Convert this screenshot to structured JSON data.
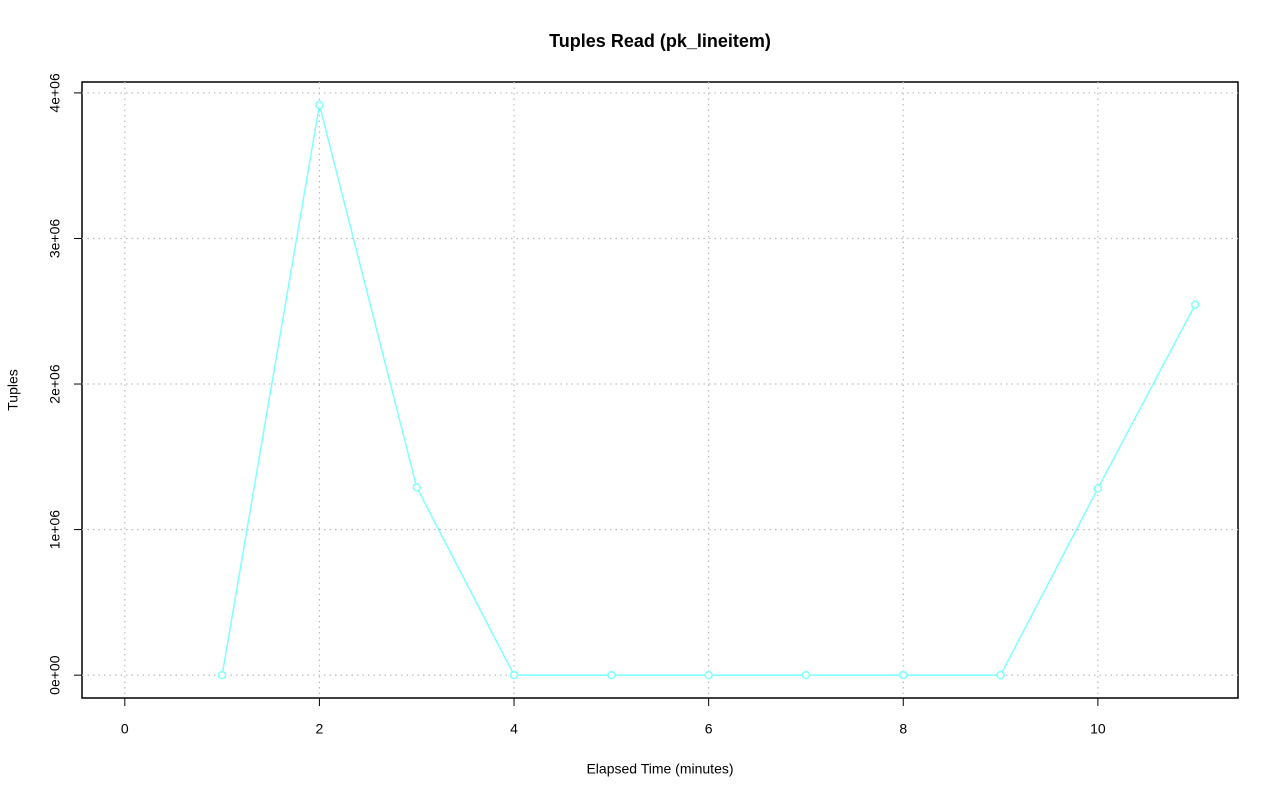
{
  "chart_data": {
    "type": "line",
    "title": "Tuples Read (pk_lineitem)",
    "x_label": "Elapsed Time (minutes)",
    "y_label": "Tuples",
    "x": [
      1,
      2,
      3,
      4,
      5,
      6,
      7,
      8,
      9,
      10,
      11
    ],
    "series": [
      {
        "name": "pk_lineitem",
        "color": "#80ffff",
        "values": [
          0,
          3918000,
          1290000,
          0,
          0,
          0,
          0,
          0,
          0,
          1283000,
          2545000
        ]
      }
    ],
    "xlim": [
      -0.44,
      11.44
    ],
    "xticks": [
      0,
      2,
      4,
      6,
      8,
      10
    ],
    "ylim": [
      -157000,
      4075000
    ],
    "yticks": [
      {
        "value": 0,
        "label": "0e+00"
      },
      {
        "value": 1000000,
        "label": "1e+06"
      },
      {
        "value": 2000000,
        "label": "2e+06"
      },
      {
        "value": 3000000,
        "label": "3e+06"
      },
      {
        "value": 4000000,
        "label": "4e+06"
      }
    ],
    "grid": true
  }
}
